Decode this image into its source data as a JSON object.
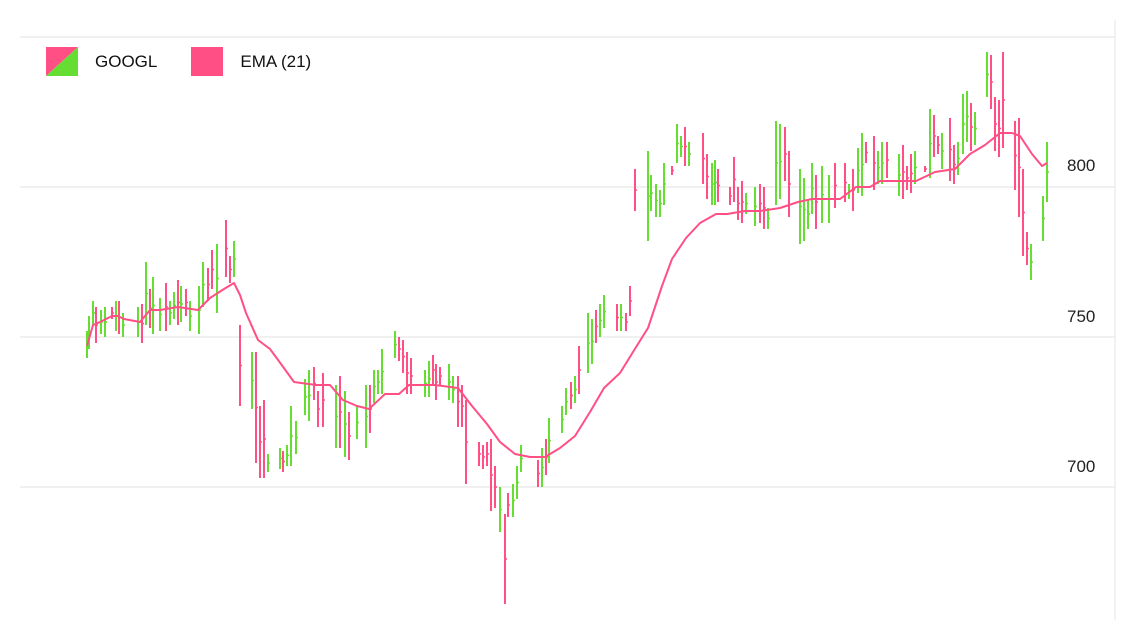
{
  "chart_data": {
    "type": "ohlc",
    "title": "",
    "legend": [
      {
        "label": "GOOGL",
        "up_color": "#66dd33",
        "down_color": "#ff4f85"
      },
      {
        "label": "EMA (21)",
        "color": "#ff4f85"
      }
    ],
    "y_axis": {
      "ticks": [
        700,
        750,
        800
      ],
      "tick_labels": [
        "700",
        "750",
        "800"
      ],
      "range": [
        655,
        850
      ],
      "position": "right"
    },
    "grid": true,
    "bars": [
      [
        87,
        743,
        752,
        1
      ],
      [
        89,
        746,
        757,
        1
      ],
      [
        93,
        754,
        762,
        1
      ],
      [
        96,
        748,
        760,
        0
      ],
      [
        101,
        751,
        759,
        1
      ],
      [
        105,
        750,
        760,
        1
      ],
      [
        112,
        756,
        760,
        0
      ],
      [
        116,
        752,
        762,
        1
      ],
      [
        119,
        751,
        762,
        0
      ],
      [
        123,
        750,
        758,
        1
      ],
      [
        138,
        750,
        760,
        1
      ],
      [
        142,
        748,
        761,
        0
      ],
      [
        146,
        754,
        775,
        1
      ],
      [
        150,
        753,
        766,
        0
      ],
      [
        153,
        751,
        770,
        1
      ],
      [
        160,
        752,
        763,
        1
      ],
      [
        166,
        752,
        768,
        0
      ],
      [
        170,
        754,
        762,
        1
      ],
      [
        174,
        756,
        765,
        1
      ],
      [
        178,
        754,
        769,
        0
      ],
      [
        181,
        755,
        767,
        1
      ],
      [
        186,
        757,
        766,
        0
      ],
      [
        190,
        752,
        762,
        1
      ],
      [
        199,
        751,
        767,
        1
      ],
      [
        203,
        760,
        775,
        1
      ],
      [
        208,
        762,
        773,
        0
      ],
      [
        212,
        766,
        779,
        0
      ],
      [
        217,
        758,
        781,
        1
      ],
      [
        226,
        770,
        789,
        0
      ],
      [
        230,
        768,
        777,
        0
      ],
      [
        234,
        770,
        782,
        1
      ],
      [
        240,
        727,
        754,
        0
      ],
      [
        252,
        726,
        745,
        1
      ],
      [
        256,
        708,
        745,
        0
      ],
      [
        260,
        703,
        727,
        0
      ],
      [
        264,
        703,
        729,
        0
      ],
      [
        268,
        705,
        711,
        1
      ],
      [
        280,
        706,
        713,
        1
      ],
      [
        283,
        705,
        712,
        0
      ],
      [
        287,
        707,
        714,
        1
      ],
      [
        291,
        707,
        727,
        1
      ],
      [
        296,
        711,
        722,
        1
      ],
      [
        305,
        724,
        736,
        1
      ],
      [
        309,
        722,
        739,
        1
      ],
      [
        314,
        729,
        740,
        0
      ],
      [
        318,
        720,
        732,
        0
      ],
      [
        323,
        720,
        738,
        0
      ],
      [
        336,
        713,
        734,
        1
      ],
      [
        340,
        713,
        737,
        0
      ],
      [
        345,
        710,
        732,
        1
      ],
      [
        349,
        709,
        725,
        0
      ],
      [
        357,
        716,
        727,
        1
      ],
      [
        366,
        713,
        734,
        1
      ],
      [
        370,
        718,
        734,
        0
      ],
      [
        374,
        728,
        739,
        1
      ],
      [
        378,
        731,
        739,
        1
      ],
      [
        382,
        731,
        746,
        1
      ],
      [
        395,
        743,
        752,
        1
      ],
      [
        399,
        742,
        750,
        0
      ],
      [
        403,
        738,
        749,
        0
      ],
      [
        407,
        731,
        745,
        0
      ],
      [
        411,
        731,
        743,
        0
      ],
      [
        425,
        730,
        739,
        1
      ],
      [
        429,
        730,
        742,
        1
      ],
      [
        433,
        734,
        744,
        0
      ],
      [
        436,
        729,
        741,
        0
      ],
      [
        440,
        734,
        740,
        0
      ],
      [
        449,
        729,
        741,
        1
      ],
      [
        453,
        728,
        737,
        1
      ],
      [
        458,
        720,
        737,
        0
      ],
      [
        462,
        720,
        734,
        0
      ],
      [
        466,
        701,
        729,
        0
      ],
      [
        479,
        707,
        715,
        0
      ],
      [
        483,
        706,
        714,
        0
      ],
      [
        487,
        707,
        715,
        0
      ],
      [
        491,
        692,
        716,
        0
      ],
      [
        495,
        693,
        707,
        0
      ],
      [
        500,
        685,
        700,
        1
      ],
      [
        505,
        661,
        691,
        0
      ],
      [
        508,
        690,
        698,
        0
      ],
      [
        513,
        690,
        701,
        1
      ],
      [
        517,
        696,
        707,
        1
      ],
      [
        521,
        705,
        714,
        1
      ],
      [
        538,
        700,
        709,
        0
      ],
      [
        542,
        700,
        713,
        1
      ],
      [
        546,
        704,
        716,
        0
      ],
      [
        549,
        708,
        723,
        1
      ],
      [
        562,
        718,
        727,
        1
      ],
      [
        566,
        724,
        733,
        1
      ],
      [
        571,
        726,
        735,
        0
      ],
      [
        575,
        728,
        737,
        1
      ],
      [
        579,
        731,
        747,
        0
      ],
      [
        588,
        738,
        758,
        1
      ],
      [
        592,
        741,
        756,
        1
      ],
      [
        596,
        748,
        759,
        0
      ],
      [
        600,
        750,
        761,
        1
      ],
      [
        604,
        753,
        764,
        1
      ],
      [
        617,
        752,
        761,
        0
      ],
      [
        621,
        752,
        761,
        1
      ],
      [
        626,
        752,
        758,
        0
      ],
      [
        630,
        757,
        767,
        0
      ],
      [
        635,
        792,
        806,
        0
      ],
      [
        648,
        782,
        812,
        1
      ],
      [
        651,
        792,
        804,
        1
      ],
      [
        656,
        790,
        801,
        1
      ],
      [
        660,
        790,
        799,
        1
      ],
      [
        664,
        794,
        808,
        1
      ],
      [
        672,
        804,
        807,
        0
      ],
      [
        677,
        808,
        821,
        1
      ],
      [
        681,
        810,
        817,
        1
      ],
      [
        685,
        807,
        820,
        0
      ],
      [
        689,
        807,
        815,
        1
      ],
      [
        703,
        801,
        818,
        0
      ],
      [
        707,
        796,
        811,
        0
      ],
      [
        712,
        794,
        808,
        1
      ],
      [
        715,
        794,
        809,
        1
      ],
      [
        718,
        795,
        806,
        0
      ],
      [
        730,
        794,
        800,
        0
      ],
      [
        734,
        795,
        810,
        0
      ],
      [
        738,
        789,
        800,
        0
      ],
      [
        742,
        788,
        802,
        0
      ],
      [
        746,
        791,
        798,
        1
      ],
      [
        755,
        787,
        800,
        1
      ],
      [
        760,
        788,
        801,
        0
      ],
      [
        764,
        786,
        800,
        0
      ],
      [
        768,
        786,
        793,
        1
      ],
      [
        776,
        794,
        822,
        1
      ],
      [
        780,
        796,
        821,
        1
      ],
      [
        785,
        802,
        820,
        0
      ],
      [
        789,
        790,
        812,
        0
      ],
      [
        800,
        781,
        806,
        1
      ],
      [
        804,
        782,
        803,
        1
      ],
      [
        808,
        786,
        796,
        1
      ],
      [
        812,
        791,
        808,
        1
      ],
      [
        816,
        786,
        804,
        0
      ],
      [
        822,
        788,
        807,
        1
      ],
      [
        829,
        788,
        804,
        1
      ],
      [
        835,
        793,
        808,
        0
      ],
      [
        845,
        795,
        808,
        0
      ],
      [
        849,
        796,
        801,
        1
      ],
      [
        853,
        792,
        806,
        0
      ],
      [
        858,
        798,
        813,
        1
      ],
      [
        862,
        797,
        818,
        1
      ],
      [
        866,
        808,
        815,
        0
      ],
      [
        874,
        799,
        817,
        0
      ],
      [
        878,
        801,
        812,
        1
      ],
      [
        882,
        801,
        815,
        1
      ],
      [
        887,
        803,
        815,
        0
      ],
      [
        899,
        797,
        811,
        1
      ],
      [
        903,
        796,
        814,
        0
      ],
      [
        907,
        799,
        807,
        0
      ],
      [
        911,
        798,
        811,
        0
      ],
      [
        915,
        801,
        812,
        1
      ],
      [
        925,
        805,
        807,
        0
      ],
      [
        930,
        803,
        826,
        1
      ],
      [
        934,
        810,
        824,
        0
      ],
      [
        938,
        811,
        817,
        0
      ],
      [
        942,
        806,
        818,
        1
      ],
      [
        950,
        802,
        823,
        0
      ],
      [
        954,
        801,
        814,
        0
      ],
      [
        958,
        804,
        815,
        1
      ],
      [
        963,
        811,
        831,
        1
      ],
      [
        967,
        815,
        832,
        1
      ],
      [
        971,
        812,
        828,
        0
      ],
      [
        975,
        814,
        825,
        1
      ],
      [
        987,
        830,
        845,
        1
      ],
      [
        991,
        826,
        844,
        0
      ],
      [
        995,
        812,
        830,
        0
      ],
      [
        999,
        810,
        829,
        0
      ],
      [
        1003,
        813,
        845,
        0
      ],
      [
        1015,
        799,
        822,
        0
      ],
      [
        1019,
        790,
        823,
        0
      ],
      [
        1023,
        777,
        806,
        0
      ],
      [
        1027,
        774,
        785,
        0
      ],
      [
        1031,
        769,
        781,
        1
      ],
      [
        1043,
        782,
        797,
        1
      ],
      [
        1047,
        795,
        815,
        1
      ]
    ],
    "ema": [
      [
        87,
        747
      ],
      [
        93,
        754
      ],
      [
        100,
        755
      ],
      [
        112,
        757
      ],
      [
        118,
        757
      ],
      [
        124,
        756
      ],
      [
        140,
        755
      ],
      [
        150,
        759
      ],
      [
        160,
        759
      ],
      [
        178,
        760
      ],
      [
        198,
        759
      ],
      [
        210,
        763
      ],
      [
        224,
        766
      ],
      [
        234,
        768
      ],
      [
        240,
        764
      ],
      [
        246,
        758
      ],
      [
        258,
        749
      ],
      [
        270,
        746
      ],
      [
        281,
        741
      ],
      [
        294,
        735
      ],
      [
        316,
        734
      ],
      [
        330,
        734
      ],
      [
        343,
        729
      ],
      [
        357,
        727
      ],
      [
        369,
        726
      ],
      [
        385,
        731
      ],
      [
        399,
        731
      ],
      [
        409,
        734
      ],
      [
        435,
        734
      ],
      [
        458,
        733
      ],
      [
        472,
        727
      ],
      [
        487,
        721
      ],
      [
        500,
        715
      ],
      [
        515,
        711
      ],
      [
        530,
        710
      ],
      [
        545,
        710
      ],
      [
        560,
        713
      ],
      [
        575,
        717
      ],
      [
        590,
        725
      ],
      [
        604,
        733
      ],
      [
        620,
        738
      ],
      [
        633,
        745
      ],
      [
        648,
        753
      ],
      [
        662,
        767
      ],
      [
        672,
        776
      ],
      [
        686,
        783
      ],
      [
        700,
        788
      ],
      [
        716,
        791
      ],
      [
        727,
        791
      ],
      [
        745,
        792
      ],
      [
        760,
        792
      ],
      [
        780,
        793
      ],
      [
        798,
        795
      ],
      [
        812,
        796
      ],
      [
        830,
        796
      ],
      [
        840,
        796
      ],
      [
        856,
        800
      ],
      [
        870,
        800
      ],
      [
        880,
        802
      ],
      [
        896,
        802
      ],
      [
        916,
        802
      ],
      [
        935,
        805
      ],
      [
        955,
        806
      ],
      [
        970,
        811
      ],
      [
        985,
        814
      ],
      [
        1000,
        818
      ],
      [
        1012,
        818
      ],
      [
        1020,
        817
      ],
      [
        1032,
        811
      ],
      [
        1042,
        807
      ],
      [
        1047,
        808
      ]
    ]
  }
}
